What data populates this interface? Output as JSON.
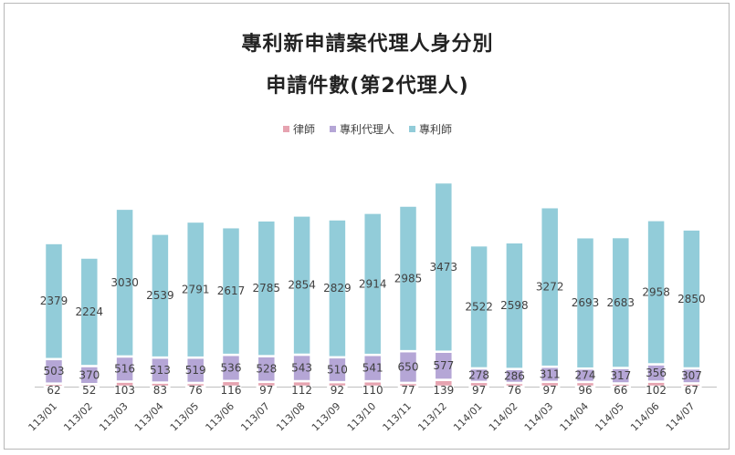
{
  "chart_data": {
    "type": "bar",
    "stacked": true,
    "title": "專利新申請案代理人身分別",
    "subtitle": "申請件數(第2代理人)",
    "categories": [
      "113/01",
      "113/02",
      "113/03",
      "113/04",
      "113/05",
      "113/06",
      "113/07",
      "113/08",
      "113/09",
      "113/10",
      "113/11",
      "113/12",
      "114/01",
      "114/02",
      "114/03",
      "114/04",
      "114/05",
      "114/06",
      "114/07"
    ],
    "series": [
      {
        "name": "律師",
        "color": "#e6a3b0",
        "values": [
          62,
          52,
          103,
          83,
          76,
          116,
          97,
          112,
          92,
          110,
          77,
          139,
          97,
          76,
          97,
          96,
          66,
          102,
          67
        ]
      },
      {
        "name": "專利代理人",
        "color": "#b5a6d6",
        "values": [
          503,
          370,
          516,
          513,
          519,
          536,
          528,
          543,
          510,
          541,
          650,
          577,
          278,
          286,
          311,
          274,
          317,
          356,
          307
        ]
      },
      {
        "name": "專利師",
        "color": "#92ccd9",
        "values": [
          2379,
          2224,
          3030,
          2539,
          2791,
          2617,
          2785,
          2854,
          2829,
          2914,
          2985,
          3473,
          2522,
          2598,
          3272,
          2693,
          2683,
          2958,
          2850
        ]
      }
    ],
    "legend_position": "top",
    "grid": false
  }
}
